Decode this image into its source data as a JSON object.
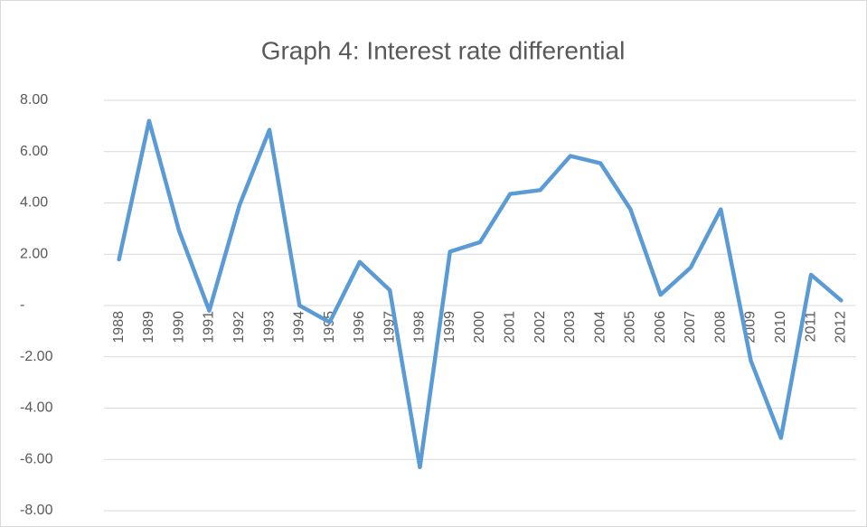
{
  "chart_data": {
    "type": "line",
    "title": "Graph 4: Interest rate differential",
    "categories": [
      "1988",
      "1989",
      "1990",
      "1991",
      "1992",
      "1993",
      "1994",
      "1995",
      "1996",
      "1997",
      "1998",
      "1999",
      "2000",
      "2001",
      "2002",
      "2003",
      "2004",
      "2005",
      "2006",
      "2007",
      "2008",
      "2009",
      "2010",
      "2011",
      "2012"
    ],
    "series": [
      {
        "name": "Interest rate differential",
        "color": "#5b9bd5",
        "values": [
          1.8,
          7.2,
          2.9,
          -0.2,
          3.9,
          6.85,
          0.0,
          -0.65,
          1.7,
          0.6,
          -6.3,
          2.1,
          2.47,
          4.35,
          4.5,
          5.83,
          5.55,
          3.75,
          0.42,
          1.48,
          3.75,
          -2.15,
          -5.16,
          1.2,
          0.2
        ]
      }
    ],
    "ylim": [
      -8,
      8
    ],
    "yticks": [
      {
        "value": -8,
        "label": "-8.00"
      },
      {
        "value": -6,
        "label": "-6.00"
      },
      {
        "value": -4,
        "label": "-4.00"
      },
      {
        "value": -2,
        "label": "-2.00"
      },
      {
        "value": 0,
        "label": "-"
      },
      {
        "value": 2,
        "label": "2.00"
      },
      {
        "value": 4,
        "label": "4.00"
      },
      {
        "value": 6,
        "label": "6.00"
      },
      {
        "value": 8,
        "label": "8.00"
      }
    ],
    "grid": true
  }
}
